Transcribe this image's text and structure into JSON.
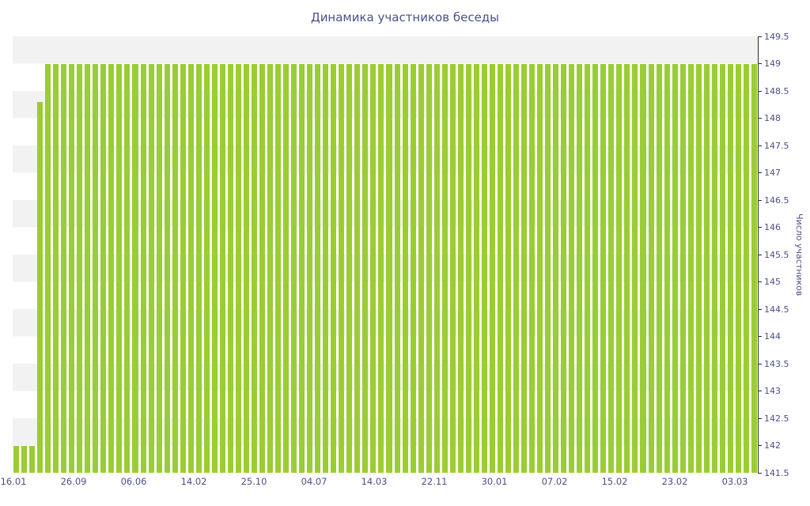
{
  "chart_data": {
    "type": "bar",
    "title": "Динамика участников беседы",
    "xlabel": "",
    "ylabel": "Число участников",
    "ylim": [
      141.5,
      149.5
    ],
    "grid": "horizontal-alternating-bands",
    "legend": "none",
    "bar_color": "#9acd32",
    "band_color": "#f2f2f2",
    "text_color": "#4a4f87",
    "x_tick_labels": [
      "16.01",
      "26.09",
      "06.06",
      "14.02",
      "25.10",
      "04.07",
      "14.03",
      "22.11",
      "30.01",
      "07.02",
      "15.02",
      "23.02",
      "03.03"
    ],
    "y_tick_labels": [
      "141.5",
      "142",
      "142.5",
      "143",
      "143.5",
      "144",
      "144.5",
      "145",
      "145.5",
      "146",
      "146.5",
      "147",
      "147.5",
      "148",
      "148.5",
      "149",
      "149.5"
    ],
    "values": [
      142,
      142,
      142,
      148.3,
      149,
      149,
      149,
      149,
      149,
      149,
      149,
      149,
      149,
      149,
      149,
      149,
      149,
      149,
      149,
      149,
      149,
      149,
      149,
      149,
      149,
      149,
      149,
      149,
      149,
      149,
      149,
      149,
      149,
      149,
      149,
      149,
      149,
      149,
      149,
      149,
      149,
      149,
      149,
      149,
      149,
      149,
      149,
      149,
      149,
      149,
      149,
      149,
      149,
      149,
      149,
      149,
      149,
      149,
      149,
      149,
      149,
      149,
      149,
      149,
      149,
      149,
      149,
      149,
      149,
      149,
      149,
      149,
      149,
      149,
      149,
      149,
      149,
      149,
      149,
      149,
      149,
      149,
      149,
      149,
      149,
      149,
      149,
      149,
      149,
      149,
      149,
      149,
      149,
      149
    ]
  }
}
